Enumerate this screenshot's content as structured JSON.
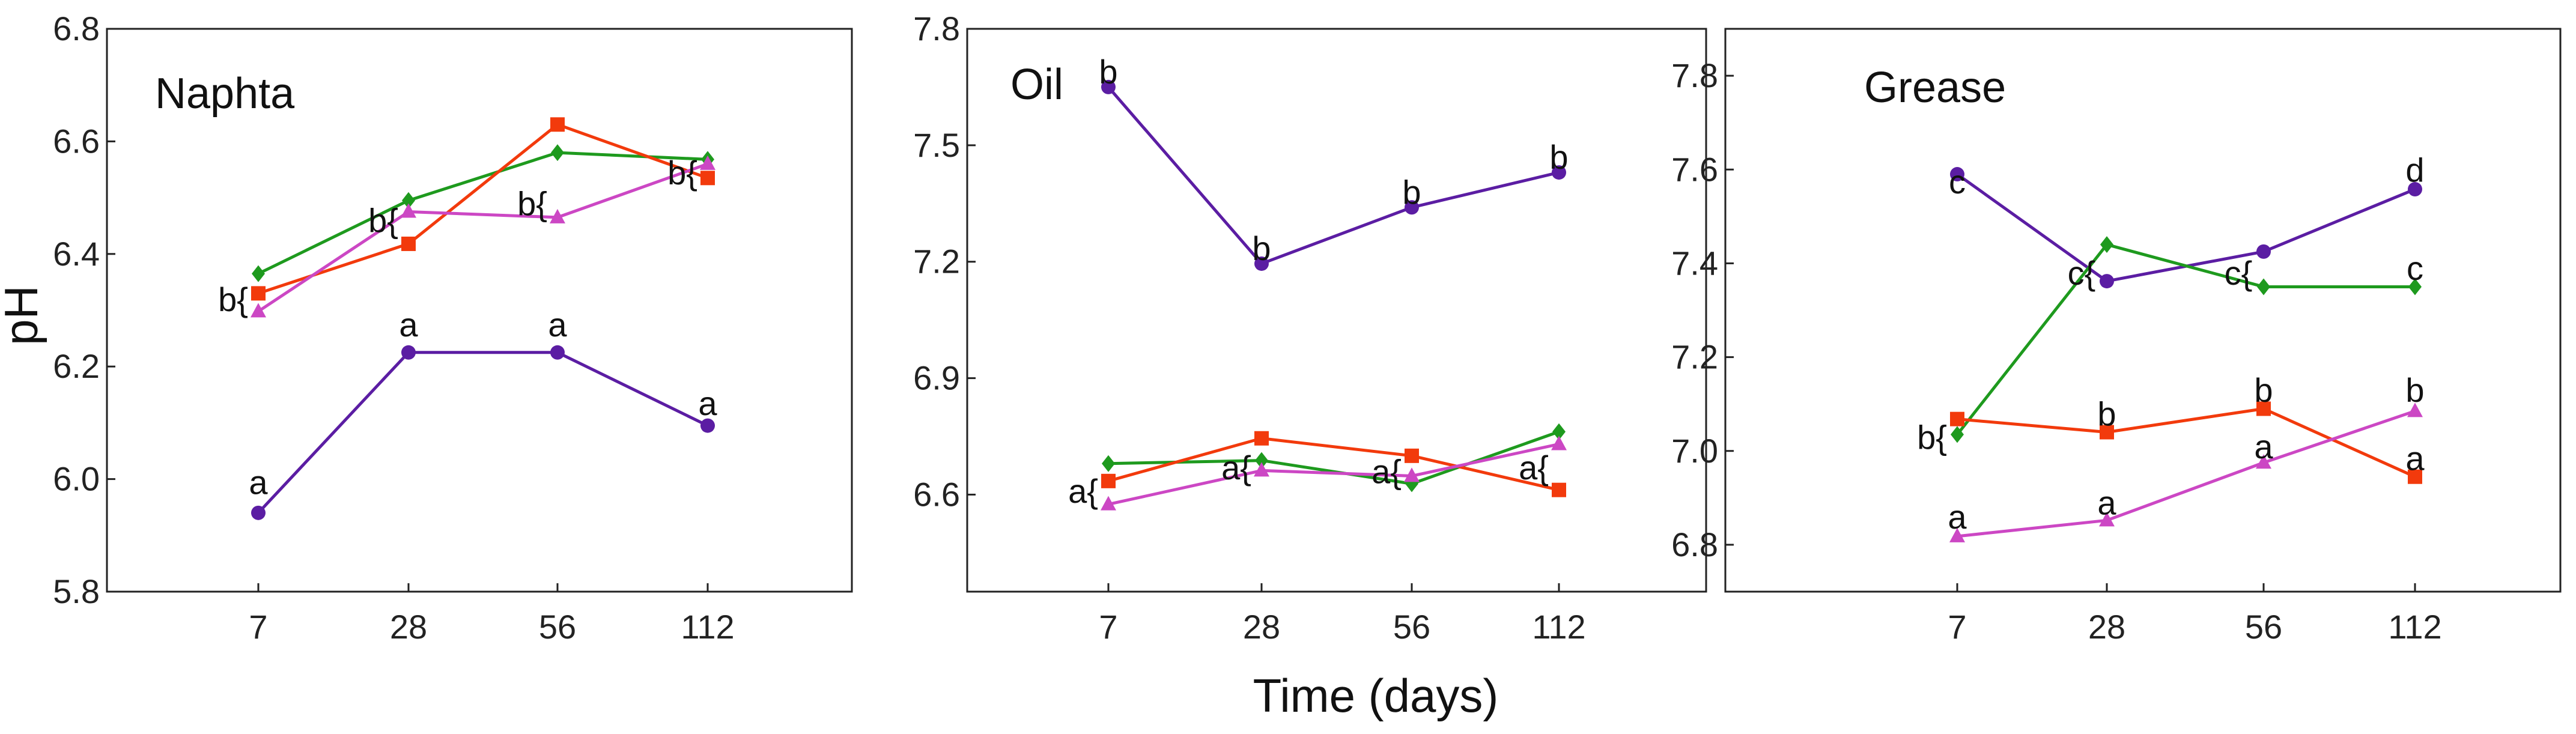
{
  "chart_data": [
    {
      "type": "line",
      "title": "Naphta",
      "xlabel": "",
      "ylabel": "pH",
      "categories": [
        "7",
        "28",
        "56",
        "112"
      ],
      "ylim": [
        5.8,
        6.8
      ],
      "yticks": [
        "5.8",
        "6.0",
        "6.2",
        "6.4",
        "6.6",
        "6.8"
      ],
      "series": [
        {
          "name": "purple",
          "color": "#5B1DA3",
          "marker": "circle",
          "values": [
            5.94,
            6.225,
            6.225,
            6.095
          ]
        },
        {
          "name": "green",
          "color": "#1E9A1E",
          "marker": "diamond",
          "values": [
            6.365,
            6.495,
            6.58,
            6.568
          ]
        },
        {
          "name": "orange",
          "color": "#F23A0C",
          "marker": "square",
          "values": [
            6.33,
            6.418,
            6.63,
            6.535
          ]
        },
        {
          "name": "pink",
          "color": "#CC47C4",
          "marker": "triangle",
          "values": [
            6.298,
            6.475,
            6.465,
            6.56
          ]
        }
      ],
      "annotations": [
        {
          "text": "a",
          "x": "7",
          "y": 5.995
        },
        {
          "text": "a",
          "x": "28",
          "y": 6.275
        },
        {
          "text": "a",
          "x": "56",
          "y": 6.275
        },
        {
          "text": "a",
          "x": "112",
          "y": 6.135
        },
        {
          "text": "b{",
          "x": "7",
          "y": 6.32
        },
        {
          "text": "b{",
          "x": "28",
          "y": 6.46
        },
        {
          "text": "b{",
          "x": "56",
          "y": 6.49
        },
        {
          "text": "b{",
          "x": "112",
          "y": 6.545
        }
      ]
    },
    {
      "type": "line",
      "title": "Oil",
      "xlabel": "Time (days)",
      "ylabel": "",
      "categories": [
        "7",
        "28",
        "56",
        "112"
      ],
      "ylim": [
        6.35,
        7.8
      ],
      "yticks": [
        "6.6",
        "6.9",
        "7.2",
        "7.5",
        "7.8"
      ],
      "series": [
        {
          "name": "purple",
          "color": "#5B1DA3",
          "marker": "circle",
          "values": [
            7.65,
            7.195,
            7.34,
            7.43
          ]
        },
        {
          "name": "green",
          "color": "#1E9A1E",
          "marker": "diamond",
          "values": [
            6.68,
            6.688,
            6.628,
            6.762
          ]
        },
        {
          "name": "orange",
          "color": "#F23A0C",
          "marker": "square",
          "values": [
            6.635,
            6.745,
            6.7,
            6.612
          ]
        },
        {
          "name": "pink",
          "color": "#CC47C4",
          "marker": "triangle",
          "values": [
            6.575,
            6.662,
            6.648,
            6.73
          ]
        }
      ],
      "annotations": [
        {
          "text": "b",
          "x": "7",
          "y": 7.69
        },
        {
          "text": "b",
          "x": "28",
          "y": 7.235
        },
        {
          "text": "b",
          "x": "56",
          "y": 7.38
        },
        {
          "text": "b",
          "x": "112",
          "y": 7.47
        },
        {
          "text": "a{",
          "x": "7",
          "y": 6.61
        },
        {
          "text": "a{",
          "x": "28",
          "y": 6.67
        },
        {
          "text": "a{",
          "x": "56",
          "y": 6.66
        },
        {
          "text": "a{",
          "x": "112",
          "y": 6.67
        }
      ]
    },
    {
      "type": "line",
      "title": "Grease",
      "xlabel": "",
      "ylabel": "",
      "categories": [
        "7",
        "28",
        "56",
        "112"
      ],
      "ylim": [
        6.7,
        7.9
      ],
      "yticks": [
        "6.8",
        "7.0",
        "7.2",
        "7.4",
        "7.6",
        "7.8"
      ],
      "series": [
        {
          "name": "purple",
          "color": "#5B1DA3",
          "marker": "circle",
          "values": [
            7.59,
            7.362,
            7.425,
            7.558
          ]
        },
        {
          "name": "green",
          "color": "#1E9A1E",
          "marker": "diamond",
          "values": [
            7.035,
            7.44,
            7.35,
            7.35
          ]
        },
        {
          "name": "orange",
          "color": "#F23A0C",
          "marker": "square",
          "values": [
            7.068,
            7.04,
            7.09,
            6.945
          ]
        },
        {
          "name": "pink",
          "color": "#CC47C4",
          "marker": "triangle",
          "values": [
            6.818,
            6.852,
            6.975,
            7.085
          ]
        }
      ],
      "annotations": [
        {
          "text": "c",
          "x": "7",
          "y": 7.575
        },
        {
          "text": "c{",
          "x": "28",
          "y": 7.38
        },
        {
          "text": "c{",
          "x": "56",
          "y": 7.38
        },
        {
          "text": "c",
          "x": "112",
          "y": 7.39
        },
        {
          "text": "d",
          "x": "112",
          "y": 7.6
        },
        {
          "text": "b{",
          "x": "7",
          "y": 7.03
        },
        {
          "text": "b",
          "x": "28",
          "y": 7.08
        },
        {
          "text": "b",
          "x": "56",
          "y": 7.13
        },
        {
          "text": "b",
          "x": "112",
          "y": 7.13
        },
        {
          "text": "a",
          "x": "7",
          "y": 6.86
        },
        {
          "text": "a",
          "x": "28",
          "y": 6.89
        },
        {
          "text": "a",
          "x": "56",
          "y": 7.01
        },
        {
          "text": "a",
          "x": "112",
          "y": 6.985
        }
      ]
    }
  ]
}
